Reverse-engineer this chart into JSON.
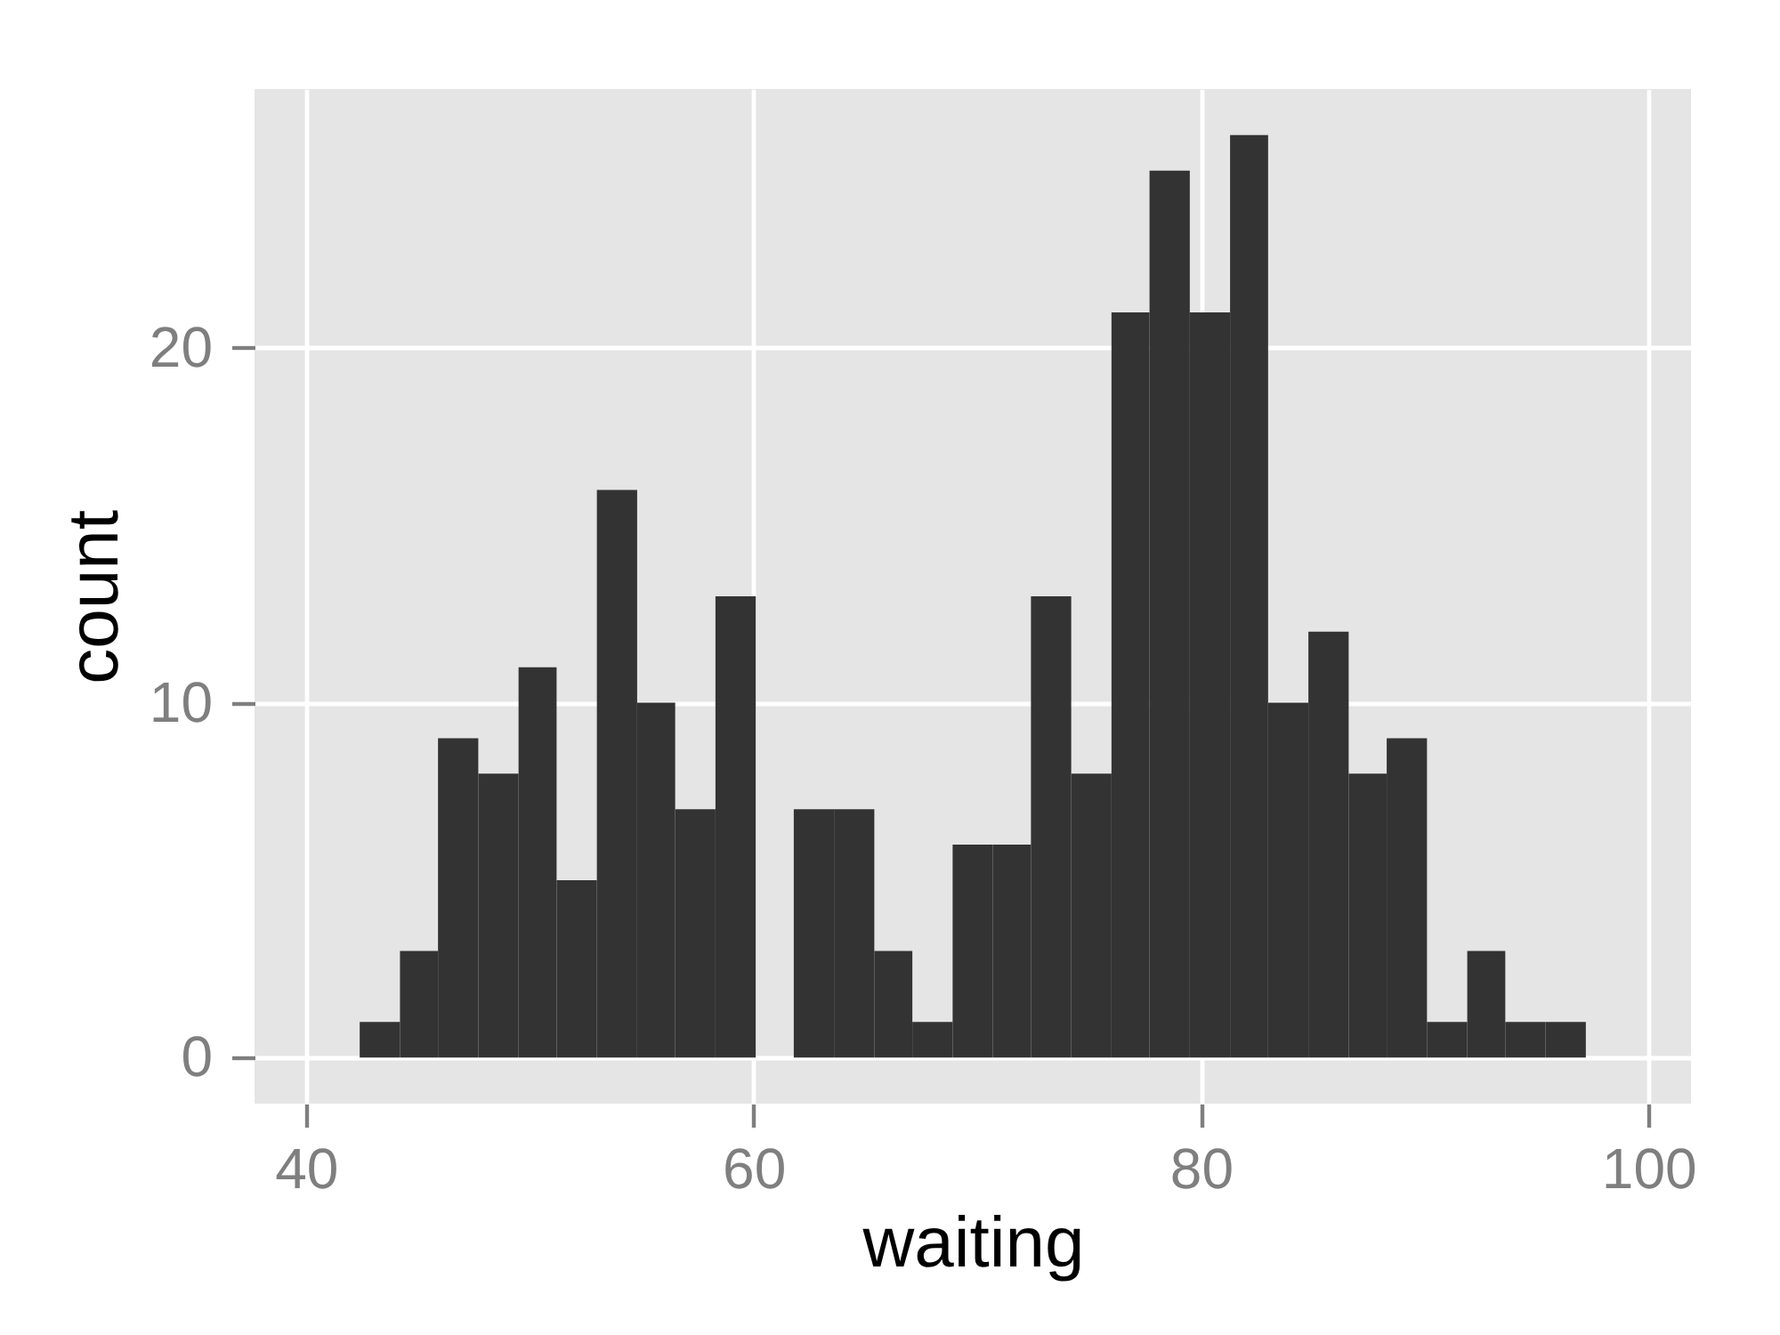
{
  "chart_data": {
    "type": "histogram",
    "xlabel": "waiting",
    "ylabel": "count",
    "bins": [
      42.4,
      44.2,
      45.9,
      47.7,
      49.5,
      51.2,
      53.0,
      54.8,
      56.5,
      58.3,
      60.1,
      61.8,
      63.6,
      65.4,
      67.1,
      68.9,
      70.7,
      72.4,
      74.2,
      76.0,
      77.7,
      79.5,
      81.3,
      83.0,
      84.8,
      86.6,
      88.3,
      90.1,
      91.9,
      93.6,
      95.4,
      97.2
    ],
    "values": [
      1,
      3,
      9,
      8,
      11,
      5,
      16,
      10,
      7,
      13,
      0,
      7,
      7,
      3,
      1,
      6,
      6,
      13,
      8,
      21,
      25,
      21,
      26,
      10,
      12,
      8,
      9,
      1,
      3,
      1,
      1
    ],
    "color": "#333333",
    "xlim": [
      37.7,
      101.9
    ],
    "xticks": [
      40,
      60,
      80,
      100
    ],
    "ylim": [
      -1.3,
      27.3
    ],
    "yticks": [
      0,
      10,
      20
    ],
    "grid": true
  }
}
